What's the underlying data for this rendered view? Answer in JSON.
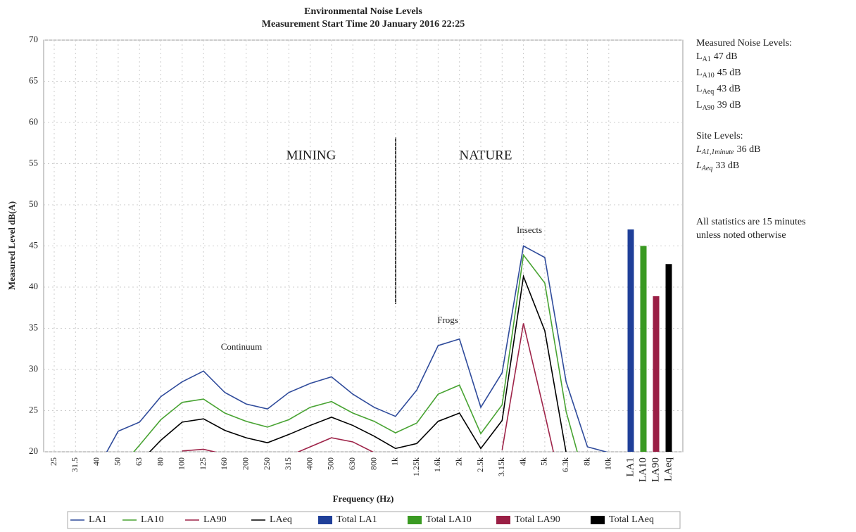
{
  "chart_data": {
    "type": "line",
    "title": "Environmental Noise Levels",
    "subtitle": "Measurement Start Time 20 January 2016 22:25",
    "x_label": "Frequency (Hz)",
    "y_label": "Measured Level dB(A)",
    "categories": [
      "25",
      "31.5",
      "40",
      "50",
      "63",
      "80",
      "100",
      "125",
      "160",
      "200",
      "250",
      "315",
      "400",
      "500",
      "630",
      "800",
      "1k",
      "1.25k",
      "1.6k",
      "2k",
      "2.5k",
      "3.15k",
      "4k",
      "5k",
      "6.3k",
      "8k",
      "10k",
      "LA1",
      "LA10",
      "LA90",
      "LAeq"
    ],
    "ylim": [
      20,
      70
    ],
    "yticks": [
      20,
      25,
      30,
      35,
      40,
      45,
      50,
      55,
      60,
      65,
      70
    ],
    "grid": true,
    "legend": "bottom",
    "series": [
      {
        "name": "LA1",
        "type": "line",
        "color": "#2f4b9b",
        "values": [
          null,
          null,
          17.8,
          22.5,
          23.6,
          26.7,
          28.5,
          29.8,
          27.2,
          25.8,
          25.2,
          27.2,
          28.3,
          29.1,
          27.0,
          25.4,
          24.3,
          27.5,
          32.9,
          33.7,
          25.4,
          29.6,
          45.0,
          43.6,
          28.5,
          20.6,
          19.9,
          null,
          null,
          null,
          null
        ]
      },
      {
        "name": "LA10",
        "type": "line",
        "color": "#48a332",
        "values": [
          null,
          null,
          null,
          17.8,
          20.8,
          23.9,
          26.0,
          26.4,
          24.7,
          23.7,
          23.0,
          23.9,
          25.4,
          26.1,
          24.7,
          23.7,
          22.3,
          23.5,
          27.0,
          28.1,
          22.2,
          25.7,
          43.9,
          40.5,
          24.9,
          15.5,
          null,
          null,
          null,
          null,
          null
        ]
      },
      {
        "name": "LA90",
        "type": "line",
        "color": "#9e2449",
        "values": [
          null,
          null,
          null,
          null,
          null,
          null,
          20.1,
          20.3,
          19.7,
          null,
          null,
          19.5,
          20.6,
          21.7,
          21.2,
          19.9,
          null,
          null,
          null,
          null,
          null,
          20.2,
          35.6,
          24.6,
          13.2,
          null,
          null,
          null,
          null,
          null,
          null
        ]
      },
      {
        "name": "LAeq",
        "type": "line",
        "color": "#000000",
        "values": [
          null,
          null,
          null,
          null,
          18.7,
          21.4,
          23.6,
          24.0,
          22.6,
          21.7,
          21.1,
          22.1,
          23.2,
          24.2,
          23.2,
          21.9,
          20.4,
          21.0,
          23.7,
          24.7,
          20.4,
          23.8,
          41.3,
          34.7,
          19.9,
          null,
          null,
          null,
          null,
          null,
          null
        ]
      },
      {
        "name": "Total LA1",
        "type": "bar",
        "color": "#1f3f99",
        "values": [
          null,
          null,
          null,
          null,
          null,
          null,
          null,
          null,
          null,
          null,
          null,
          null,
          null,
          null,
          null,
          null,
          null,
          null,
          null,
          null,
          null,
          null,
          null,
          null,
          null,
          null,
          null,
          47,
          null,
          null,
          null
        ]
      },
      {
        "name": "Total LA10",
        "type": "bar",
        "color": "#3a9a22",
        "values": [
          null,
          null,
          null,
          null,
          null,
          null,
          null,
          null,
          null,
          null,
          null,
          null,
          null,
          null,
          null,
          null,
          null,
          null,
          null,
          null,
          null,
          null,
          null,
          null,
          null,
          null,
          null,
          null,
          45,
          null,
          null
        ]
      },
      {
        "name": "Total LA90",
        "type": "bar",
        "color": "#9a1f45",
        "values": [
          null,
          null,
          null,
          null,
          null,
          null,
          null,
          null,
          null,
          null,
          null,
          null,
          null,
          null,
          null,
          null,
          null,
          null,
          null,
          null,
          null,
          null,
          null,
          null,
          null,
          null,
          null,
          null,
          null,
          38.9,
          null
        ]
      },
      {
        "name": "Total LAeq",
        "type": "bar",
        "color": "#000000",
        "values": [
          null,
          null,
          null,
          null,
          null,
          null,
          null,
          null,
          null,
          null,
          null,
          null,
          null,
          null,
          null,
          null,
          null,
          null,
          null,
          null,
          null,
          null,
          null,
          null,
          null,
          null,
          null,
          null,
          null,
          null,
          42.8
        ]
      }
    ],
    "annotations": [
      "MINING",
      "NATURE",
      "Continuum",
      "Frogs",
      "Insects"
    ],
    "notes": {
      "measured_title": "Measured Noise Levels:",
      "measured": [
        {
          "base": "L",
          "sub": "A1",
          "value": "47 dB"
        },
        {
          "base": "L",
          "sub": "A10",
          "value": "45 dB"
        },
        {
          "base": "L",
          "sub": "Aeq",
          "value": "43 dB"
        },
        {
          "base": "L",
          "sub": "A90",
          "value": "39 dB"
        }
      ],
      "site_title": "Site Levels:",
      "site": [
        {
          "base": "L",
          "sub": "A1,1",
          "sub_italic": "minute",
          "value": "36 dB"
        },
        {
          "base": "L",
          "sub": "Aeq",
          "value": "33 dB"
        }
      ],
      "note": [
        "All statistics are 15 minutes",
        "unless noted otherwise"
      ]
    }
  }
}
